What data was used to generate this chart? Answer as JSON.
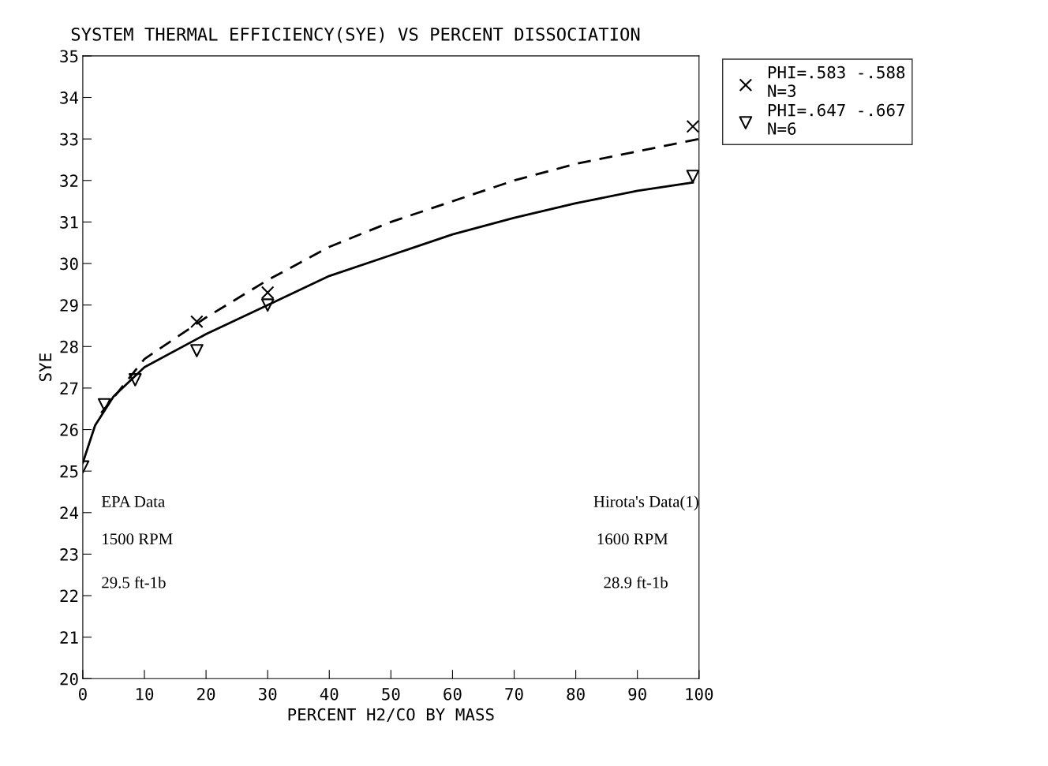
{
  "chart_data": {
    "type": "scatter",
    "title": "SYSTEM THERMAL EFFICIENCY(SYE) VS PERCENT DISSOCIATION",
    "xlabel": "PERCENT H2/CO BY MASS",
    "ylabel": "SYE",
    "xlim": [
      0,
      100
    ],
    "ylim": [
      20,
      35
    ],
    "xticks": [
      0,
      10,
      20,
      30,
      40,
      50,
      60,
      70,
      80,
      90,
      100
    ],
    "yticks": [
      20,
      21,
      22,
      23,
      24,
      25,
      26,
      27,
      28,
      29,
      30,
      31,
      32,
      33,
      34,
      35
    ],
    "grid": false,
    "legend": "top right",
    "series": [
      {
        "name": "PHI=.583 -.588\nN=3",
        "marker": "cross",
        "color": "#000000",
        "x": [
          18.5,
          30,
          99
        ],
        "values": [
          28.6,
          29.3,
          33.3
        ]
      },
      {
        "name": "PHI=.647 -.667\nN=6",
        "marker": "triangle",
        "color": "#000000",
        "x": [
          0,
          3.5,
          8.5,
          18.5,
          30,
          99
        ],
        "values": [
          25.1,
          26.6,
          27.2,
          27.9,
          29.0,
          32.1
        ]
      },
      {
        "type": "line",
        "line_style": "dashed",
        "color": "#000000",
        "x": [
          3,
          10,
          20,
          30,
          40,
          50,
          60,
          70,
          80,
          90,
          100
        ],
        "values": [
          26.4,
          27.7,
          28.7,
          29.6,
          30.4,
          31.0,
          31.5,
          32.0,
          32.4,
          32.7,
          33.0
        ]
      },
      {
        "type": "line",
        "line_style": "solid",
        "color": "#000000",
        "x": [
          0,
          2,
          5,
          10,
          20,
          30,
          40,
          50,
          60,
          70,
          80,
          90,
          99
        ],
        "values": [
          25.2,
          26.1,
          26.8,
          27.5,
          28.3,
          29.0,
          29.7,
          30.2,
          30.7,
          31.1,
          31.45,
          31.75,
          31.95
        ]
      }
    ],
    "annotations": [
      "EPA Data",
      "1500 RPM",
      "29.5 ft-1b",
      "Hirota's Data(1)",
      "1600 RPM",
      "28.9 ft-1b"
    ]
  }
}
